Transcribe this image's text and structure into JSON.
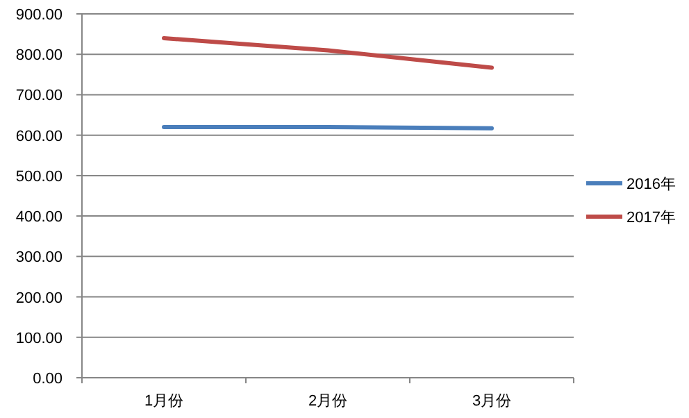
{
  "chart_data": {
    "type": "line",
    "categories": [
      "1月份",
      "2月份",
      "3月份"
    ],
    "series": [
      {
        "name": "2016年",
        "color": "#4a7ebb",
        "values": [
          620,
          620,
          617
        ]
      },
      {
        "name": "2017年",
        "color": "#be4b48",
        "values": [
          840,
          810,
          767
        ]
      }
    ],
    "ylim": [
      0,
      900
    ],
    "yticks": [
      {
        "value": 0,
        "label": "0.00"
      },
      {
        "value": 100,
        "label": "100.00"
      },
      {
        "value": 200,
        "label": "200.00"
      },
      {
        "value": 300,
        "label": "300.00"
      },
      {
        "value": 400,
        "label": "400.00"
      },
      {
        "value": 500,
        "label": "500.00"
      },
      {
        "value": 600,
        "label": "600.00"
      },
      {
        "value": 700,
        "label": "700.00"
      },
      {
        "value": 800,
        "label": "800.00"
      },
      {
        "value": 900,
        "label": "900.00"
      }
    ],
    "grid": "y",
    "legend": "right",
    "marker": "none",
    "line_style": "solid"
  }
}
